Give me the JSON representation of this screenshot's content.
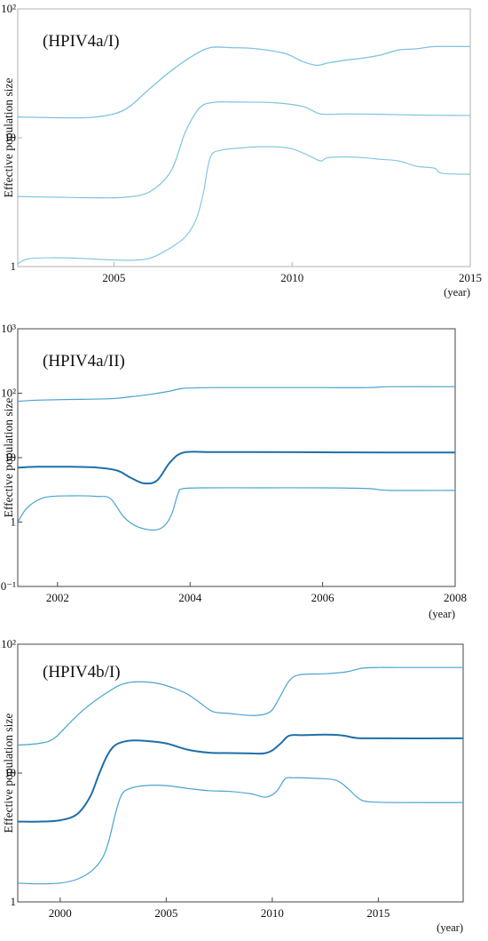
{
  "chart_data": [
    {
      "type": "line",
      "title": "(HPIV4a/I)",
      "ylabel": "Effective population size",
      "xunit": "(year)",
      "yscale": "log",
      "xlim": [
        2002.3,
        2015
      ],
      "ylim": [
        1,
        100
      ],
      "xticks": [
        2005,
        2010,
        2015
      ],
      "xtick_labels": [
        "2005",
        "2010",
        "2015"
      ],
      "yticks": [
        1,
        10,
        100
      ],
      "ytick_labels": [
        "1",
        "10",
        "10²"
      ],
      "color": "#7cc3df",
      "frame_color": "#b0b0b0",
      "series": [
        {
          "role": "upper",
          "width": 1.3,
          "x": [
            2002.3,
            2003.5,
            2004.5,
            2005.3,
            2006.0,
            2006.6,
            2007.2,
            2007.7,
            2008.3,
            2009.0,
            2009.8,
            2010.3,
            2010.7,
            2011.0,
            2011.5,
            2012.0,
            2012.5,
            2013.0,
            2013.5,
            2014.0,
            2015.0
          ],
          "y": [
            14.5,
            14.3,
            14.5,
            16.5,
            24,
            33,
            43,
            50,
            50,
            49,
            45,
            39,
            36.5,
            38,
            40,
            41.5,
            44,
            48,
            49,
            51,
            51
          ]
        },
        {
          "role": "median",
          "width": 1.2,
          "x": [
            2002.3,
            2003.5,
            2004.5,
            2005.3,
            2006.0,
            2006.6,
            2007.0,
            2007.4,
            2007.8,
            2008.5,
            2009.5,
            2010.3,
            2010.8,
            2011.5,
            2012.5,
            2013.5,
            2014.5,
            2015.0
          ],
          "y": [
            3.5,
            3.45,
            3.42,
            3.45,
            3.8,
            5.5,
            11,
            17,
            18.8,
            18.9,
            18.7,
            17.5,
            15.3,
            15.3,
            15.2,
            15.0,
            14.9,
            14.9
          ]
        },
        {
          "role": "lower",
          "width": 1.1,
          "x": [
            2002.3,
            2002.6,
            2003.3,
            2004.0,
            2004.8,
            2005.5,
            2006.0,
            2006.5,
            2007.0,
            2007.3,
            2007.5,
            2007.7,
            2008.0,
            2008.5,
            2009.0,
            2009.5,
            2010.0,
            2010.5,
            2010.8,
            2011.0,
            2011.5,
            2012.0,
            2012.5,
            2013.0,
            2013.5,
            2014.0,
            2014.2,
            2015.0
          ],
          "y": [
            1.05,
            1.15,
            1.17,
            1.16,
            1.13,
            1.12,
            1.16,
            1.35,
            1.7,
            2.3,
            3.6,
            7.0,
            8.0,
            8.3,
            8.5,
            8.5,
            8.2,
            7.2,
            6.6,
            7.0,
            7.1,
            7.0,
            6.8,
            6.6,
            6.0,
            5.8,
            5.3,
            5.2
          ]
        }
      ]
    },
    {
      "type": "line",
      "title": "(HPIV4a/II)",
      "ylabel": "Effective population size",
      "xunit": "(year)",
      "yscale": "log",
      "xlim": [
        2001.4,
        2008
      ],
      "ylim": [
        0.1,
        1000
      ],
      "xticks": [
        2002,
        2004,
        2006,
        2008
      ],
      "xtick_labels": [
        "2002",
        "2004",
        "2006",
        "2008"
      ],
      "yticks": [
        0.1,
        1,
        10,
        100,
        1000
      ],
      "ytick_labels": [
        "10⁻¹",
        "1",
        "10",
        "10²",
        "10³"
      ],
      "color": "#4aa3cf",
      "median_color": "#1f6fa8",
      "frame_color": "#444444",
      "series": [
        {
          "role": "upper",
          "width": 1.2,
          "x": [
            2001.4,
            2001.7,
            2002.2,
            2002.8,
            2003.1,
            2003.4,
            2003.7,
            2003.9,
            2004.3,
            2005.0,
            2006.0,
            2006.7,
            2007.0,
            2008.0
          ],
          "y": [
            75,
            78,
            80,
            82,
            88,
            96,
            108,
            119,
            122,
            122,
            122,
            122,
            126,
            126
          ]
        },
        {
          "role": "median",
          "width": 2.0,
          "x": [
            2001.4,
            2001.7,
            2002.2,
            2002.6,
            2002.9,
            2003.1,
            2003.3,
            2003.5,
            2003.7,
            2003.9,
            2004.3,
            2005.0,
            2006.0,
            2007.0,
            2008.0
          ],
          "y": [
            7.0,
            7.2,
            7.2,
            7.0,
            6.3,
            4.9,
            4.0,
            4.4,
            8.5,
            12.0,
            12.2,
            12.2,
            12.1,
            12.0,
            12.0
          ]
        },
        {
          "role": "lower",
          "width": 1.2,
          "x": [
            2001.4,
            2001.55,
            2001.8,
            2002.2,
            2002.6,
            2002.8,
            2003.0,
            2003.2,
            2003.45,
            2003.6,
            2003.72,
            2003.82,
            2003.9,
            2004.3,
            2005.0,
            2006.0,
            2006.7,
            2007.0,
            2008.0
          ],
          "y": [
            1.0,
            1.7,
            2.4,
            2.55,
            2.5,
            2.3,
            1.2,
            0.85,
            0.75,
            0.85,
            1.3,
            2.8,
            3.3,
            3.4,
            3.4,
            3.4,
            3.3,
            3.1,
            3.1
          ]
        }
      ]
    },
    {
      "type": "line",
      "title": "(HPIV4b/I)",
      "ylabel": "Effective population size",
      "xunit": "(year)",
      "yscale": "log",
      "xlim": [
        1998,
        2019
      ],
      "ylim": [
        1,
        100
      ],
      "xticks": [
        2000,
        2005,
        2010,
        2015
      ],
      "xtick_labels": [
        "2000",
        "2005",
        "2010",
        "2015"
      ],
      "yticks": [
        1,
        10,
        100
      ],
      "ytick_labels": [
        "1",
        "10",
        "10²"
      ],
      "color": "#4aa3cf",
      "median_color": "#1f6fa8",
      "frame_color": "#444444",
      "series": [
        {
          "role": "upper",
          "width": 1.2,
          "x": [
            1998.0,
            1999.0,
            1999.7,
            2000.5,
            2001.2,
            2002.0,
            2002.8,
            2003.5,
            2004.5,
            2005.3,
            2006.0,
            2006.6,
            2007.2,
            2008.0,
            2009.0,
            2009.6,
            2010.0,
            2010.4,
            2010.8,
            2011.3,
            2012.5,
            2013.5,
            2014.2,
            2015.0,
            2016.0,
            2019.0
          ],
          "y": [
            16.5,
            17,
            18.5,
            25,
            32,
            40,
            48,
            51,
            50,
            46,
            41,
            35,
            30,
            29,
            28,
            28.5,
            31,
            40,
            52,
            58,
            59,
            61,
            65,
            66,
            66,
            66
          ]
        },
        {
          "role": "median",
          "width": 2.0,
          "x": [
            1998.0,
            1999.0,
            2000.0,
            2000.8,
            2001.4,
            2001.8,
            2002.2,
            2002.6,
            2003.2,
            2004.0,
            2005.0,
            2006.0,
            2007.0,
            2008.0,
            2009.0,
            2009.6,
            2010.0,
            2010.4,
            2010.8,
            2011.5,
            2012.5,
            2013.3,
            2014.0,
            2015.0,
            2019.0
          ],
          "y": [
            4.2,
            4.2,
            4.3,
            4.8,
            6.5,
            9.5,
            13.5,
            16.5,
            17.8,
            17.8,
            17.0,
            15.2,
            14.4,
            14.3,
            14.2,
            14.2,
            15.0,
            17.0,
            19.5,
            19.7,
            19.9,
            19.6,
            18.7,
            18.6,
            18.6
          ]
        },
        {
          "role": "lower",
          "width": 1.2,
          "x": [
            1998.0,
            1999.0,
            2000.0,
            2000.8,
            2001.5,
            2002.0,
            2002.3,
            2002.6,
            2002.9,
            2003.3,
            2004.0,
            2005.0,
            2006.0,
            2007.0,
            2008.0,
            2009.0,
            2009.7,
            2010.2,
            2010.6,
            2011.0,
            2012.0,
            2013.0,
            2013.6,
            2014.0,
            2014.5,
            2016.0,
            2019.0
          ],
          "y": [
            1.4,
            1.38,
            1.4,
            1.5,
            1.75,
            2.2,
            3.0,
            4.8,
            6.8,
            7.6,
            8.0,
            8.0,
            7.6,
            7.3,
            7.2,
            6.9,
            6.5,
            7.2,
            9.0,
            9.2,
            9.1,
            8.8,
            7.5,
            6.5,
            6.0,
            5.9,
            5.9
          ]
        }
      ]
    }
  ]
}
